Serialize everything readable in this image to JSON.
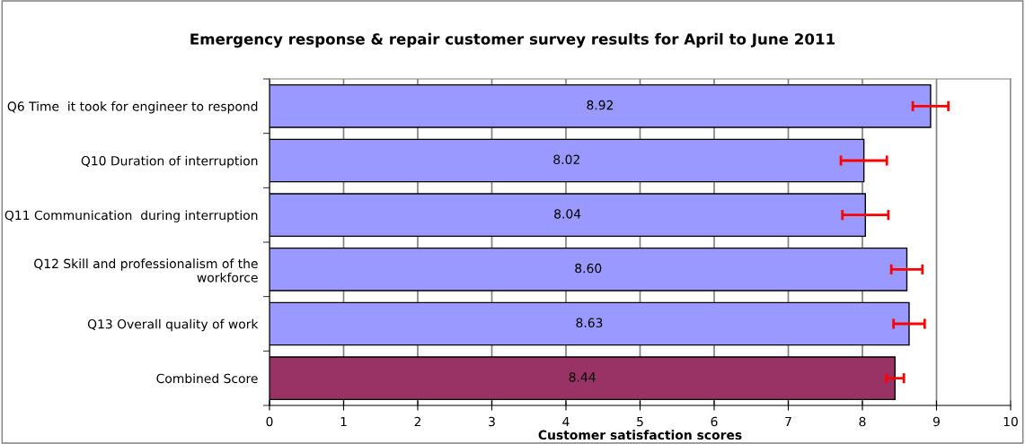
{
  "chart_data": {
    "type": "bar",
    "orientation": "horizontal",
    "title": "Emergency response & repair customer survey results for April to June 2011",
    "xlabel": "Customer satisfaction scores",
    "categories": [
      "Q6 Time  it took for engineer to respond",
      "Q10 Duration of interruption",
      "Q11 Communication  during interruption",
      "Q12 Skill and professionalism of the workforce",
      "Q13 Overall quality of work",
      "Combined Score"
    ],
    "values": [
      8.92,
      8.02,
      8.04,
      8.6,
      8.63,
      8.44
    ],
    "colors": [
      "#9999ff",
      "#9999ff",
      "#9999ff",
      "#9999ff",
      "#9999ff",
      "#993366"
    ],
    "value_labels": [
      "8.92",
      "8.02",
      "8.04",
      "8.60",
      "8.63",
      "8.44"
    ],
    "errors": [
      0.24,
      0.31,
      0.31,
      0.21,
      0.21,
      0.12
    ],
    "xlim": [
      0,
      10
    ],
    "xticks": [
      0,
      1,
      2,
      3,
      4,
      5,
      6,
      7,
      8,
      9,
      10
    ],
    "grid": "x"
  }
}
